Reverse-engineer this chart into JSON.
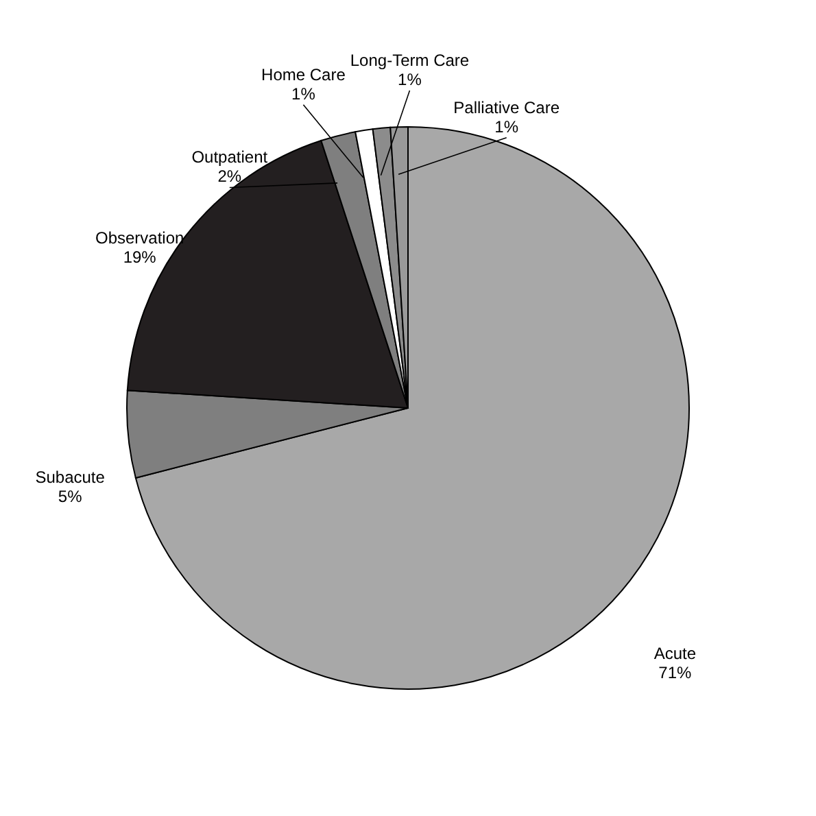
{
  "chart_data": {
    "type": "pie",
    "categories": [
      "Acute",
      "Subacute",
      "Observation",
      "Outpatient",
      "Home Care",
      "Long-Term Care",
      "Palliative Care"
    ],
    "values": [
      71,
      5,
      19,
      2,
      1,
      1,
      1
    ],
    "value_labels": [
      "71%",
      "5%",
      "19%",
      "2%",
      "1%",
      "1%",
      "1%"
    ],
    "colors": [
      "#a8a8a8",
      "#7f7f7f",
      "#231f20",
      "#7f7f7f",
      "#ffffff",
      "#8c8c8c",
      "#999999"
    ]
  }
}
